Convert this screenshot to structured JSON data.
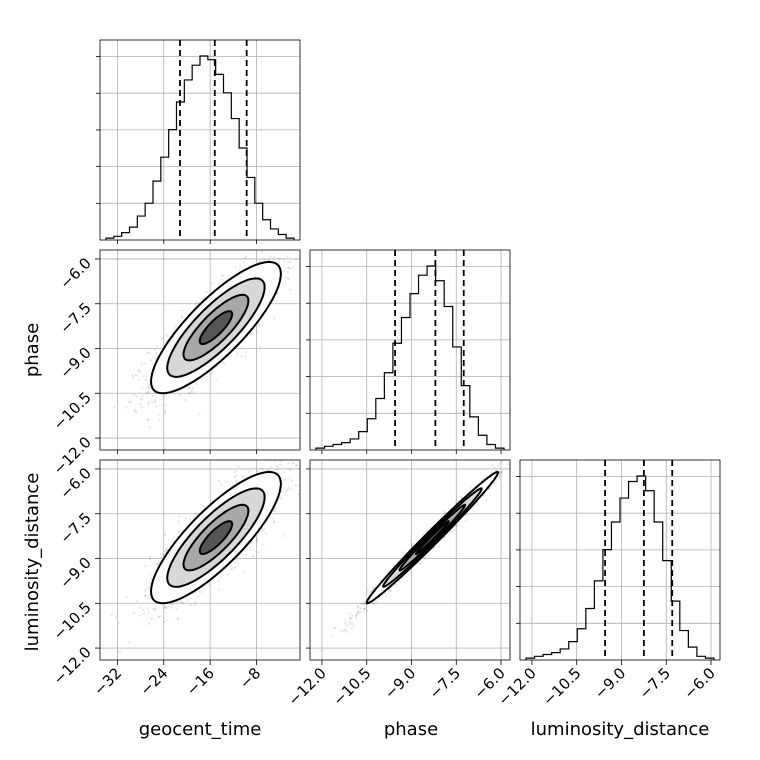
{
  "chart_data": {
    "type": "corner",
    "parameters": [
      "geocent_time",
      "phase",
      "luminosity_distance"
    ],
    "ranges": {
      "geocent_time": [
        -35,
        -0.5
      ],
      "phase": [
        -12.4,
        -5.7
      ],
      "luminosity_distance": [
        -12.4,
        -5.7
      ]
    },
    "ticks": {
      "geocent_time": [
        -32,
        -24,
        -16,
        -8
      ],
      "phase": [
        -12.0,
        -10.5,
        -9.0,
        -7.5,
        -6.0
      ],
      "luminosity_distance": [
        -12.0,
        -10.5,
        -9.0,
        -7.5,
        -6.0
      ]
    },
    "tick_labels": {
      "geocent_time": [
        "−32",
        "−24",
        "−16",
        "−8"
      ],
      "phase": [
        "−12.0",
        "−10.5",
        "−9.0",
        "−7.5",
        "−6.0"
      ],
      "luminosity_distance": [
        "−12.0",
        "−10.5",
        "−9.0",
        "−7.5",
        "−6.0"
      ]
    },
    "quantiles": {
      "geocent_time": [
        -21.2,
        -15.2,
        -9.7
      ],
      "phase": [
        -9.55,
        -8.2,
        -7.25
      ],
      "luminosity_distance": [
        -9.55,
        -8.25,
        -7.3
      ]
    },
    "histograms": {
      "geocent_time": [
        1,
        2,
        4,
        7,
        13,
        20,
        32,
        45,
        60,
        75,
        87,
        95,
        100,
        98,
        90,
        80,
        66,
        50,
        34,
        20,
        11,
        6,
        3,
        1
      ],
      "phase": [
        1,
        2,
        3,
        4,
        6,
        10,
        17,
        28,
        42,
        58,
        72,
        85,
        95,
        100,
        92,
        78,
        56,
        35,
        18,
        8,
        3,
        1
      ],
      "luminosity_distance": [
        1,
        2,
        3,
        4,
        6,
        10,
        17,
        28,
        43,
        60,
        75,
        88,
        97,
        100,
        92,
        75,
        54,
        32,
        16,
        7,
        2,
        1
      ]
    },
    "gaussian_2d": {
      "geocent_time_vs_phase": {
        "mx": -15,
        "my": -8.3,
        "sx": 5.6,
        "sy": 1.1,
        "rho": 0.82
      },
      "geocent_time_vs_luminosity_distance": {
        "mx": -15,
        "my": -8.3,
        "sx": 5.6,
        "sy": 1.1,
        "rho": 0.82
      },
      "phase_vs_luminosity_distance": {
        "mx": -8.3,
        "my": -8.3,
        "sx": 1.1,
        "sy": 1.1,
        "rho": 0.99
      }
    },
    "contour_levels_sigma": [
      0.5,
      1.0,
      1.5,
      2.0
    ],
    "grid": true,
    "colors": {
      "line": "#000000",
      "grid": "#b0b0b0",
      "points": "#000000"
    }
  },
  "labels": {
    "x0": "geocent_time",
    "x1": "phase",
    "x2": "luminosity_distance",
    "y1": "phase",
    "y2": "luminosity_distance"
  }
}
